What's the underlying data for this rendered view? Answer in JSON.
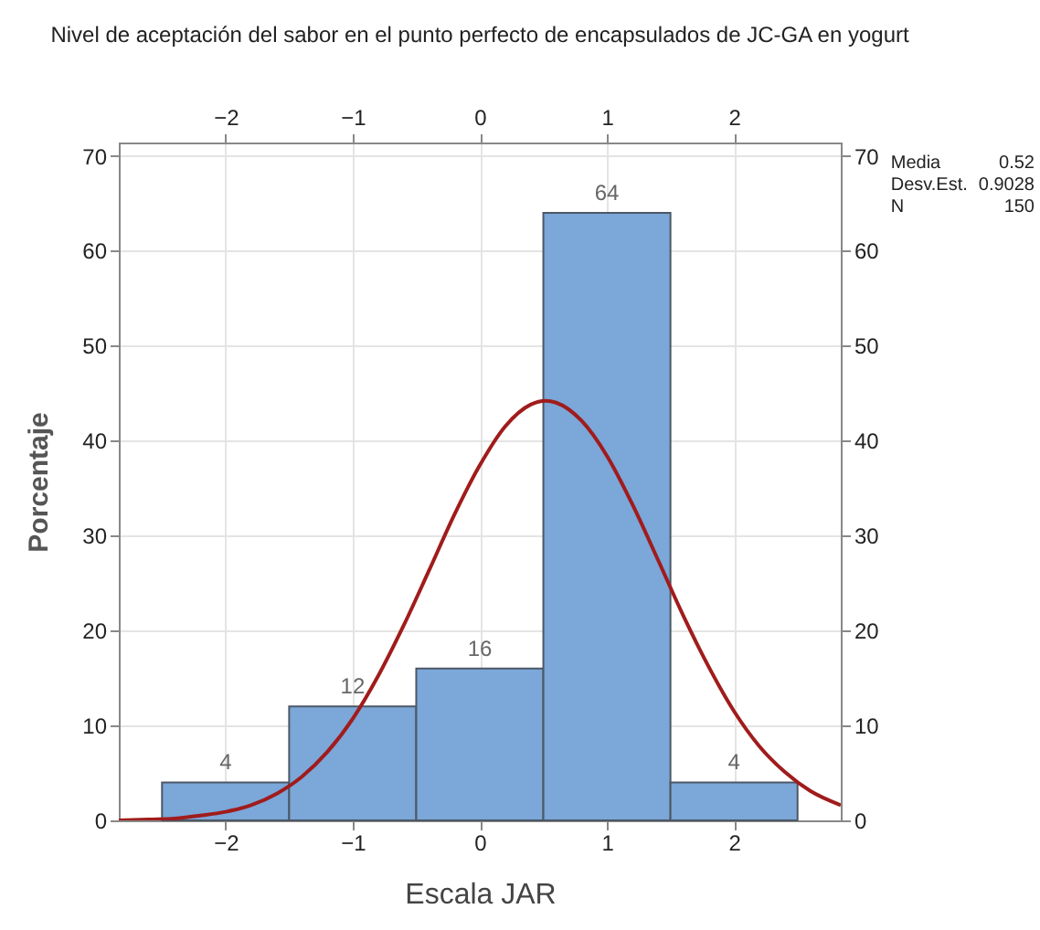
{
  "chart_data": {
    "type": "histogram",
    "title": "Nivel de aceptación del sabor en el punto perfecto de encapsulados de JC-GA en yogurt",
    "xlabel": "Escala JAR",
    "ylabel": "Porcentaje",
    "bins": [
      -2.5,
      -1.5,
      -0.5,
      0.5,
      1.5,
      2.5
    ],
    "values": [
      4,
      12,
      16,
      64,
      4
    ],
    "color": "#7ba7d9",
    "value_labels": [
      "4",
      "12",
      "16",
      "64",
      "4"
    ],
    "series": [
      {
        "type": "line",
        "color": "#a01c1c",
        "x": [
          -2.84,
          -2.6,
          -2.4,
          -2.2,
          -2.0,
          -1.8,
          -1.6,
          -1.4,
          -1.2,
          -1.0,
          -0.8,
          -0.6,
          -0.4,
          -0.2,
          0,
          0.2,
          0.4,
          0.52,
          0.6,
          0.8,
          1.0,
          1.2,
          1.4,
          1.6,
          1.8,
          2.0,
          2.2,
          2.4,
          2.6,
          2.84
        ],
        "values": [
          0.0,
          0.1,
          0.2,
          0.5,
          0.9,
          1.6,
          2.8,
          4.6,
          7.2,
          10.7,
          15.2,
          20.5,
          26.3,
          32.2,
          37.4,
          41.5,
          43.8,
          44.2,
          44.0,
          42.1,
          38.4,
          33.3,
          27.5,
          21.6,
          16.2,
          11.5,
          7.8,
          5.1,
          3.1,
          1.6
        ]
      }
    ],
    "xlim": [
      -2.84,
      2.84
    ],
    "xticks": [
      -2,
      -1,
      0,
      1,
      2
    ],
    "x2lim": [
      -2.84,
      2.84
    ],
    "x2ticks": [
      -2,
      -1,
      0,
      1,
      2
    ],
    "ylim": [
      0,
      71.4
    ],
    "yticks": [
      0,
      10,
      20,
      30,
      40,
      50,
      60,
      70
    ],
    "y2lim": [
      0,
      71.4
    ],
    "y2ticks": [
      0,
      10,
      20,
      30,
      40,
      50,
      60,
      70
    ],
    "grid": true,
    "annotations": [
      "Media 0.52",
      "Desv.Est. 0.9028",
      "N 150"
    ]
  }
}
